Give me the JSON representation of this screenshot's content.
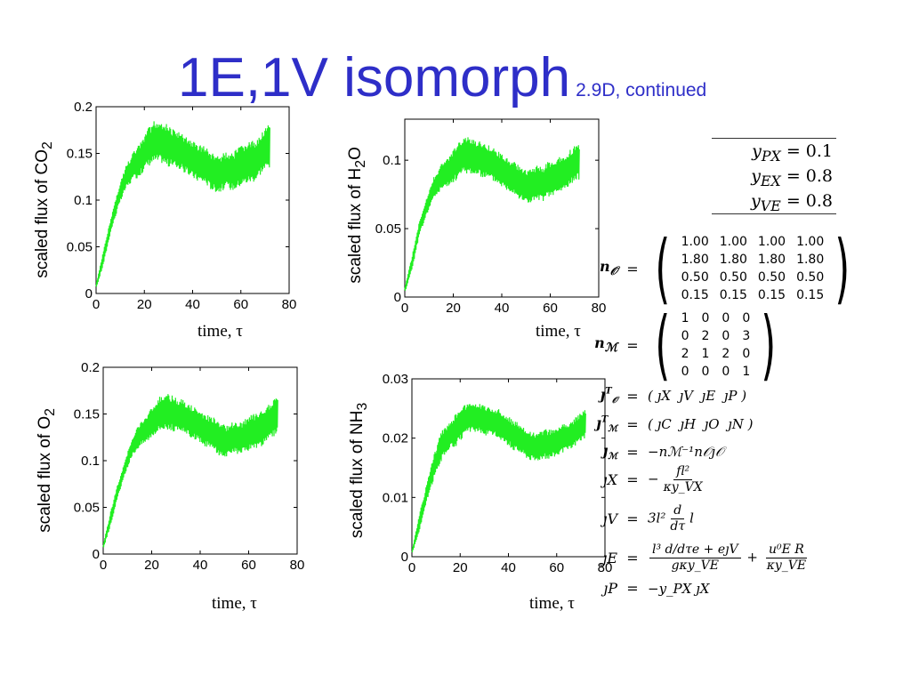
{
  "slide": {
    "title": "1E,1V isomorph",
    "subtitle": "2.9D, continued"
  },
  "colors": {
    "title": "#2e2ec8",
    "series": "#22ee22",
    "axis": "#000000"
  },
  "chart_data": [
    {
      "type": "line",
      "title": "",
      "ylabel": "scaled flux of CO",
      "ylabel_sub": "2",
      "ylabel_tail": "",
      "xlabel": "time, τ",
      "xlim": [
        0,
        80
      ],
      "ylim": [
        0,
        0.2
      ],
      "xticks": [
        "0",
        "20",
        "40",
        "60",
        "80"
      ],
      "yticks": [
        "0",
        "0.05",
        "0.1",
        "0.15",
        "0.2"
      ],
      "series": [
        {
          "x": [
            0,
            3,
            6,
            9,
            12,
            15,
            18,
            21,
            24,
            27,
            30,
            33,
            36,
            39,
            42,
            45,
            48,
            51,
            54,
            57,
            60,
            63,
            66,
            69,
            72
          ],
          "y_low": [
            0.005,
            0.03,
            0.065,
            0.09,
            0.11,
            0.12,
            0.125,
            0.135,
            0.14,
            0.14,
            0.135,
            0.135,
            0.13,
            0.125,
            0.12,
            0.118,
            0.11,
            0.108,
            0.112,
            0.11,
            0.115,
            0.118,
            0.12,
            0.13,
            0.135
          ],
          "y_high": [
            0.01,
            0.045,
            0.08,
            0.11,
            0.135,
            0.15,
            0.16,
            0.175,
            0.185,
            0.185,
            0.18,
            0.175,
            0.17,
            0.165,
            0.16,
            0.158,
            0.15,
            0.148,
            0.152,
            0.152,
            0.158,
            0.162,
            0.165,
            0.175,
            0.182
          ]
        }
      ]
    },
    {
      "type": "line",
      "title": "",
      "ylabel": "scaled flux of H",
      "ylabel_sub": "2",
      "ylabel_tail": "O",
      "xlabel": "time, τ",
      "xlim": [
        0,
        80
      ],
      "ylim": [
        0,
        0.13
      ],
      "xticks": [
        "0",
        "20",
        "40",
        "60",
        "80"
      ],
      "yticks": [
        "0",
        "0.05",
        "0.1"
      ],
      "ytick_values": [
        0,
        0.05,
        0.1
      ],
      "series": [
        {
          "x": [
            0,
            3,
            6,
            9,
            12,
            15,
            18,
            21,
            24,
            27,
            30,
            33,
            36,
            39,
            42,
            45,
            48,
            51,
            54,
            57,
            60,
            63,
            66,
            69,
            72
          ],
          "y_low": [
            0.003,
            0.02,
            0.045,
            0.06,
            0.072,
            0.078,
            0.08,
            0.085,
            0.09,
            0.09,
            0.088,
            0.087,
            0.085,
            0.082,
            0.078,
            0.076,
            0.07,
            0.068,
            0.07,
            0.07,
            0.073,
            0.075,
            0.078,
            0.083,
            0.086
          ],
          "y_high": [
            0.007,
            0.03,
            0.055,
            0.072,
            0.088,
            0.097,
            0.103,
            0.11,
            0.117,
            0.117,
            0.115,
            0.113,
            0.11,
            0.106,
            0.102,
            0.1,
            0.095,
            0.093,
            0.096,
            0.096,
            0.1,
            0.102,
            0.104,
            0.109,
            0.113
          ]
        }
      ]
    },
    {
      "type": "line",
      "title": "",
      "ylabel": "scaled flux of O",
      "ylabel_sub": "2",
      "ylabel_tail": "",
      "xlabel": "time, τ",
      "xlim": [
        0,
        80
      ],
      "ylim": [
        0,
        0.2
      ],
      "xticks": [
        "0",
        "20",
        "40",
        "60",
        "80"
      ],
      "yticks": [
        "0",
        "0.05",
        "0.1",
        "0.15",
        "0.2"
      ],
      "series": [
        {
          "x": [
            0,
            3,
            6,
            9,
            12,
            15,
            18,
            21,
            24,
            27,
            30,
            33,
            36,
            39,
            42,
            45,
            48,
            51,
            54,
            57,
            60,
            63,
            66,
            69,
            72
          ],
          "y_low": [
            0.005,
            0.03,
            0.06,
            0.085,
            0.105,
            0.115,
            0.12,
            0.128,
            0.133,
            0.133,
            0.13,
            0.128,
            0.125,
            0.12,
            0.115,
            0.112,
            0.105,
            0.103,
            0.107,
            0.106,
            0.11,
            0.112,
            0.115,
            0.123,
            0.128
          ],
          "y_high": [
            0.01,
            0.045,
            0.075,
            0.1,
            0.125,
            0.14,
            0.15,
            0.162,
            0.172,
            0.172,
            0.168,
            0.165,
            0.16,
            0.155,
            0.15,
            0.148,
            0.14,
            0.138,
            0.142,
            0.142,
            0.148,
            0.152,
            0.155,
            0.163,
            0.168
          ]
        }
      ]
    },
    {
      "type": "line",
      "title": "",
      "ylabel": "scaled flux of NH",
      "ylabel_sub": "3",
      "ylabel_tail": "",
      "xlabel": "time, τ",
      "xlim": [
        0,
        80
      ],
      "ylim": [
        0,
        0.03
      ],
      "xticks": [
        "0",
        "20",
        "40",
        "60",
        "80"
      ],
      "yticks": [
        "0",
        "0.01",
        "0.02",
        "0.03"
      ],
      "series": [
        {
          "x": [
            0,
            3,
            6,
            9,
            12,
            15,
            18,
            21,
            24,
            27,
            30,
            33,
            36,
            39,
            42,
            45,
            48,
            51,
            54,
            57,
            60,
            63,
            66,
            69,
            72
          ],
          "y_low": [
            0.0005,
            0.004,
            0.009,
            0.013,
            0.016,
            0.018,
            0.0185,
            0.02,
            0.021,
            0.021,
            0.0205,
            0.0203,
            0.02,
            0.019,
            0.018,
            0.0175,
            0.0165,
            0.016,
            0.0165,
            0.0165,
            0.017,
            0.0175,
            0.018,
            0.0193,
            0.02
          ],
          "y_high": [
            0.001,
            0.007,
            0.012,
            0.017,
            0.021,
            0.0225,
            0.024,
            0.0255,
            0.026,
            0.026,
            0.0255,
            0.0252,
            0.025,
            0.024,
            0.023,
            0.0225,
            0.0215,
            0.021,
            0.0215,
            0.0215,
            0.022,
            0.0225,
            0.023,
            0.024,
            0.025
          ]
        }
      ]
    }
  ],
  "params": [
    {
      "var": "y",
      "sub": "PX",
      "eq": "= 0.1"
    },
    {
      "var": "y",
      "sub": "EX",
      "eq": "= 0.8"
    },
    {
      "var": "y",
      "sub": "VE",
      "eq": "= 0.8"
    }
  ],
  "equations": {
    "eqsign": "=",
    "nO": {
      "lhs": "n",
      "lhs_sub": "𝒪",
      "rows": [
        [
          "1.00",
          "1.00",
          "1.00",
          "1.00"
        ],
        [
          "1.80",
          "1.80",
          "1.80",
          "1.80"
        ],
        [
          "0.50",
          "0.50",
          "0.50",
          "0.50"
        ],
        [
          "0.15",
          "0.15",
          "0.15",
          "0.15"
        ]
      ]
    },
    "nM": {
      "lhs": "n",
      "lhs_sub": "ℳ",
      "rows": [
        [
          "1",
          "0",
          "0",
          "0"
        ],
        [
          "0",
          "2",
          "0",
          "3"
        ],
        [
          "2",
          "1",
          "2",
          "0"
        ],
        [
          "0",
          "0",
          "0",
          "1"
        ]
      ]
    },
    "jOT": {
      "lhs": "ȷ",
      "lhs_sub": "𝒪",
      "lhs_sup": "T",
      "entries": [
        "ȷX",
        "ȷV",
        "ȷE",
        "ȷP"
      ]
    },
    "jMT": {
      "lhs": "ȷ",
      "lhs_sub": "ℳ",
      "lhs_sup": "T",
      "entries": [
        "ȷC",
        "ȷH",
        "ȷO",
        "ȷN"
      ]
    },
    "jM": {
      "lhs": "ȷ",
      "lhs_sub": "ℳ",
      "rhs": "−nℳ⁻¹n𝒪ȷ𝒪"
    },
    "jX": {
      "lhs": "ȷX",
      "rhs_pre": "−",
      "num": "fl²",
      "den": "κy_VX"
    },
    "jV": {
      "lhs": "ȷV",
      "rhs": "3l²",
      "frac_num": "d",
      "frac_den": "dτ",
      "rhs_tail": "l"
    },
    "jE": {
      "lhs": "ȷE",
      "num1": "l³ d/dτe + eȷV",
      "den1": "gκy_VE",
      "plus": "+",
      "num2": "u⁰E R",
      "den2": "κy_VE"
    },
    "jP": {
      "lhs": "ȷP",
      "rhs": "−y_PX ȷX"
    }
  }
}
